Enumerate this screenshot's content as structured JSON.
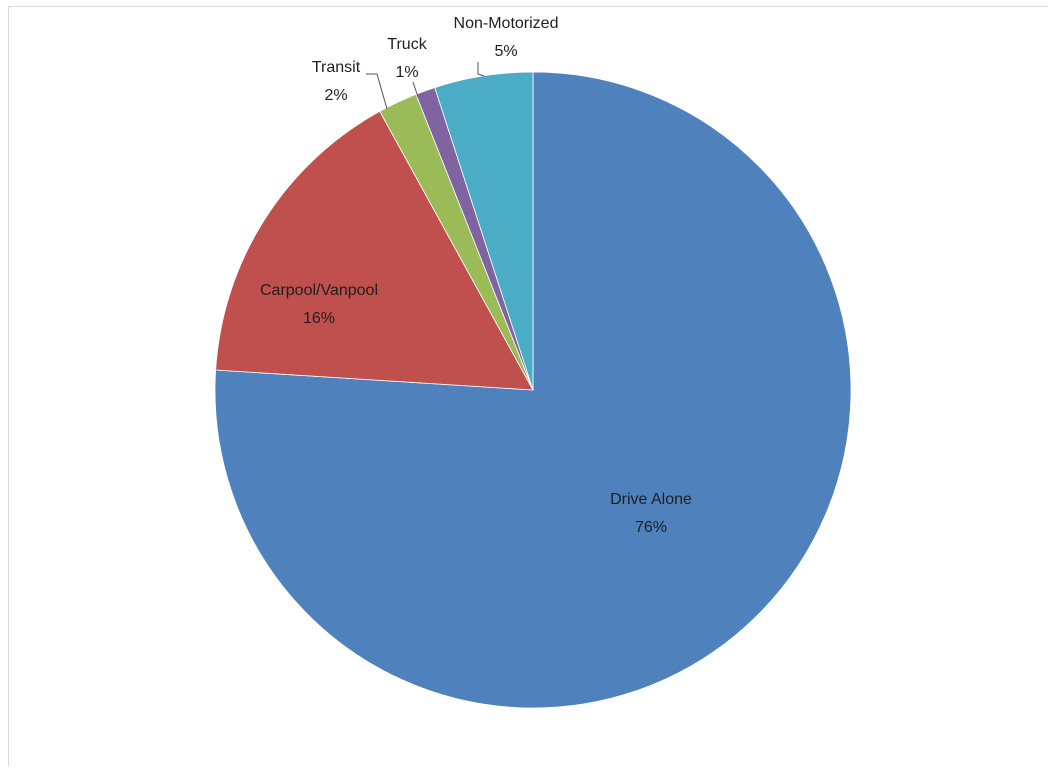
{
  "chart_data": {
    "type": "pie",
    "start_angle_deg": 0,
    "direction": "clockwise",
    "slices": [
      {
        "label": "Drive Alone",
        "value": 76,
        "display": "76%",
        "color": "#4F81BD",
        "label_position": "inside"
      },
      {
        "label": "Carpool/Vanpool",
        "value": 16,
        "display": "16%",
        "color": "#C0504D",
        "label_position": "inside"
      },
      {
        "label": "Transit",
        "value": 2,
        "display": "2%",
        "color": "#9BBB59",
        "label_position": "outside"
      },
      {
        "label": "Truck",
        "value": 1,
        "display": "1%",
        "color": "#8064A2",
        "label_position": "outside"
      },
      {
        "label": "Non-Motorized",
        "value": 5,
        "display": "5%",
        "color": "#4BACC6",
        "label_position": "outside"
      }
    ],
    "legend": "none"
  }
}
